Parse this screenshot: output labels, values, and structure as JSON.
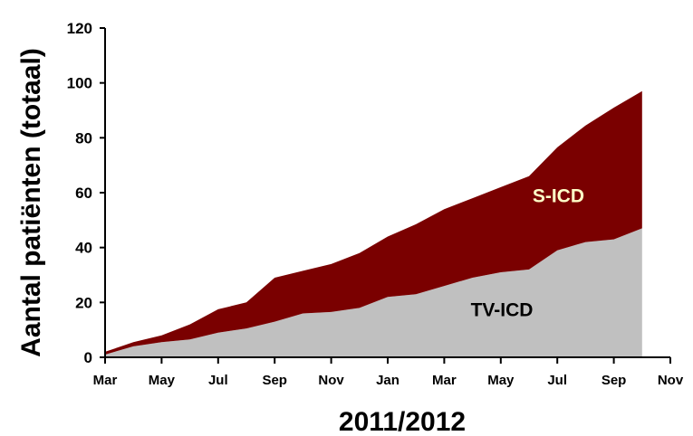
{
  "chart_data": {
    "type": "area",
    "stacked": true,
    "xlabel": "2011/2012",
    "ylabel": "Aantal patiënten (totaal)",
    "x_tick_labels": [
      "Mar",
      "May",
      "Jul",
      "Sep",
      "Nov",
      "Jan",
      "Mar",
      "May",
      "Jul",
      "Sep",
      "Nov"
    ],
    "ylim": [
      0,
      120
    ],
    "y_ticks": [
      0,
      20,
      40,
      60,
      80,
      100,
      120
    ],
    "x_months": [
      "2011-03",
      "2011-04",
      "2011-05",
      "2011-06",
      "2011-07",
      "2011-08",
      "2011-09",
      "2011-10",
      "2011-11",
      "2011-12",
      "2012-01",
      "2012-02",
      "2012-03",
      "2012-04",
      "2012-05",
      "2012-06",
      "2012-07",
      "2012-08",
      "2012-09",
      "2012-10"
    ],
    "xlim": [
      "2011-03",
      "2012-11"
    ],
    "series": [
      {
        "name": "TV-ICD",
        "color": "#c0c0c0",
        "label_color": "#000000",
        "values": [
          1,
          4,
          5.5,
          6.5,
          9,
          10.5,
          13,
          16,
          16.5,
          18,
          22,
          23,
          26,
          29,
          31,
          32,
          39,
          42,
          43,
          47
        ]
      },
      {
        "name": "S-ICD",
        "color": "#7a0000",
        "label_color": "#ffffc8",
        "values": [
          1,
          1.5,
          2.5,
          5.5,
          8.5,
          9.5,
          16,
          15.5,
          17.5,
          20,
          22,
          25.5,
          28,
          29,
          31,
          34,
          37.5,
          42.5,
          48,
          50
        ]
      }
    ],
    "grid": false,
    "legend": "none"
  }
}
